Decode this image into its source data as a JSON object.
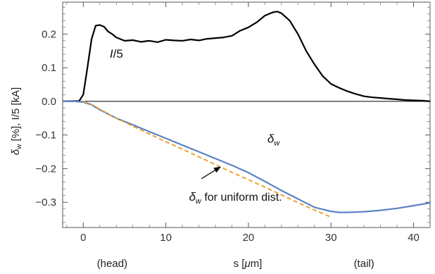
{
  "chart_data": {
    "type": "line",
    "xlabel": "s [μm]",
    "ylabel": "δw [%], I/5 [kA]",
    "xlim": [
      -2.5,
      42
    ],
    "ylim": [
      -0.375,
      0.295
    ],
    "x_ticks": [
      0,
      10,
      20,
      30,
      40
    ],
    "y_ticks": [
      0.2,
      0.1,
      0.0,
      -0.1,
      -0.2,
      -0.3
    ],
    "y_tick_labels": [
      "0.2",
      "0.1",
      "0.0",
      "−0.1",
      "−0.2",
      "−0.3"
    ],
    "x_region_labels": [
      {
        "text": "(head)",
        "x": 3.5
      },
      {
        "text": "(tail)",
        "x": 34
      }
    ],
    "zero_line": true,
    "series": [
      {
        "name": "I/5",
        "color": "#000000",
        "style": "solid",
        "x": [
          -2.5,
          -0.5,
          0,
          0.5,
          1,
          1.5,
          2,
          2.5,
          3,
          3.5,
          4,
          5,
          6,
          7,
          8,
          9,
          10,
          11,
          12,
          13,
          14,
          15,
          16,
          17,
          18,
          19,
          20,
          21,
          22,
          23,
          23.5,
          24,
          25,
          26,
          27,
          28,
          29,
          30,
          31,
          32,
          33,
          34,
          35,
          36,
          37,
          38,
          39,
          40,
          41,
          42
        ],
        "values": [
          0.0,
          0.001,
          0.02,
          0.1,
          0.185,
          0.225,
          0.227,
          0.222,
          0.208,
          0.2,
          0.19,
          0.18,
          0.182,
          0.177,
          0.18,
          0.176,
          0.183,
          0.181,
          0.18,
          0.184,
          0.181,
          0.186,
          0.188,
          0.19,
          0.195,
          0.21,
          0.22,
          0.235,
          0.255,
          0.265,
          0.267,
          0.262,
          0.24,
          0.2,
          0.15,
          0.11,
          0.075,
          0.052,
          0.04,
          0.03,
          0.022,
          0.015,
          0.012,
          0.01,
          0.008,
          0.006,
          0.004,
          0.003,
          0.002,
          0.0
        ]
      },
      {
        "name": "δw",
        "color": "#5b82c4",
        "style": "solid",
        "x": [
          -2.5,
          -1,
          0,
          1,
          2,
          4,
          6,
          8,
          10,
          12,
          14,
          16,
          18,
          20,
          22,
          24,
          26,
          28,
          30,
          31,
          32,
          34,
          36,
          38,
          40,
          42
        ],
        "values": [
          0.0,
          0.0,
          -0.002,
          -0.01,
          -0.025,
          -0.05,
          -0.07,
          -0.09,
          -0.11,
          -0.13,
          -0.15,
          -0.17,
          -0.19,
          -0.212,
          -0.238,
          -0.265,
          -0.29,
          -0.315,
          -0.327,
          -0.33,
          -0.33,
          -0.328,
          -0.324,
          -0.318,
          -0.31,
          -0.302
        ]
      },
      {
        "name": "δw for uniform dist.",
        "color": "#f0a030",
        "style": "dashed",
        "x": [
          0,
          0.5,
          1,
          2,
          4,
          6,
          8,
          10,
          12,
          14,
          16,
          18,
          20,
          22,
          24,
          26,
          28,
          30
        ],
        "values": [
          -0.001,
          -0.004,
          -0.009,
          -0.023,
          -0.05,
          -0.074,
          -0.097,
          -0.12,
          -0.142,
          -0.165,
          -0.188,
          -0.211,
          -0.233,
          -0.255,
          -0.278,
          -0.301,
          -0.323,
          -0.344
        ]
      }
    ],
    "annotations": [
      {
        "text": "I/5",
        "main": "I",
        "rest": "/5",
        "x": 3.2,
        "y": 0.13
      },
      {
        "text": "δw",
        "main": "δ",
        "sub": "w",
        "x": 22.3,
        "y": -0.123
      },
      {
        "text": "δw for uniform dist.",
        "main": "δ",
        "sub": "w",
        "rest": " for uniform dist.",
        "x": 12.8,
        "y": -0.295,
        "arrow_from": [
          14.3,
          -0.23
        ],
        "arrow_to": [
          16.6,
          -0.195
        ]
      }
    ]
  }
}
